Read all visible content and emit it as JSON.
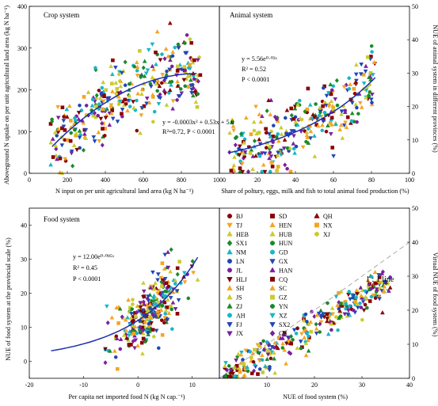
{
  "chart_data": [
    {
      "type": "scatter",
      "title": "Crop system",
      "xlabel": "N input on per unit agricultural land area (kg N ha⁻¹)",
      "ylabel": "Aboveground N uptake on per unit agricultural land area (kg N ha⁻¹)",
      "xlim": [
        0,
        1000
      ],
      "ylim": [
        0,
        400
      ],
      "xticks": [
        "0",
        "200",
        "400",
        "600",
        "800",
        "1000"
      ],
      "yticks": [
        "0",
        "100",
        "200",
        "300",
        "400"
      ],
      "fit": {
        "kind": "quadratic",
        "a": -0.0003,
        "b": 0.53,
        "c": 5.0,
        "x_range": [
          120,
          880
        ]
      },
      "annotations": [
        "y = -0.0003x² + 0.53x + 5.0",
        "R²=0.72,  P < 0.0001"
      ],
      "cloud": {
        "x_range": [
          110,
          900
        ],
        "spread": 45,
        "count": 340
      }
    },
    {
      "type": "scatter",
      "title": "Animal system",
      "xlabel": "Share of poltury, eggs, milk and fish to total animal food production (%)",
      "ylabel": "NUE of animal system in different provinces (%)",
      "xlim": [
        0,
        100
      ],
      "ylim": [
        0,
        50
      ],
      "xticks": [
        "0",
        "20",
        "40",
        "60",
        "80",
        "100"
      ],
      "yticks": [
        "0",
        "10",
        "20",
        "30",
        "40",
        "50"
      ],
      "fit": {
        "kind": "exponential",
        "a": 5.56,
        "b": 0.02,
        "x_range": [
          5,
          82
        ]
      },
      "annotations": [
        "y = 5.56e⁰·⁰²ˣ",
        "R² = 0.52",
        "P < 0.0001"
      ],
      "cloud": {
        "x_range": [
          5,
          82
        ],
        "spread": 5,
        "count": 320
      }
    },
    {
      "type": "scatter",
      "title": "Food system",
      "xlabel": "Per capita net imported food N (kg N cap.⁻¹)",
      "ylabel": "NUE of food system at the provincial scale (%)",
      "xlim": [
        -20,
        15
      ],
      "ylim": [
        -5,
        45
      ],
      "xticks": [
        "-20",
        "-10",
        "0",
        "10"
      ],
      "yticks": [
        "0",
        "10",
        "20",
        "30",
        "40"
      ],
      "fit": {
        "kind": "exponential",
        "a": 12.0,
        "b": 0.085,
        "x_range": [
          -16,
          11
        ]
      },
      "annotations": [
        "y = 12.00e⁰·⁰⁸⁵ˣ",
        "R² = 0.45",
        "P < 0.0001"
      ],
      "cloud": {
        "x_range": [
          -6,
          11
        ],
        "spread": 5,
        "count": 300
      }
    },
    {
      "type": "scatter",
      "title": "",
      "xlabel": "NUE of food system (%)",
      "ylabel": "Virtual NUE of food system (%)",
      "xlim": [
        0,
        40
      ],
      "ylim": [
        0,
        50
      ],
      "xticks": [
        "0",
        "10",
        "20",
        "30",
        "40"
      ],
      "yticks": [
        "0",
        "10",
        "20",
        "30",
        "40",
        "50"
      ],
      "reference_line": {
        "label": "1 : 1 line"
      },
      "cloud": {
        "x_range": [
          1,
          36
        ],
        "spread": 2.2,
        "count": 320
      }
    }
  ],
  "legend": {
    "placement": "food-system panel, upper right",
    "entries": [
      {
        "name": "BJ",
        "color": "#8b0000",
        "marker": "circle"
      },
      {
        "name": "TJ",
        "color": "#f4a522",
        "marker": "triangle-down"
      },
      {
        "name": "HEB",
        "color": "#c9cc2e",
        "marker": "triangle-up"
      },
      {
        "name": "SX1",
        "color": "#1a8a2a",
        "marker": "diamond"
      },
      {
        "name": "NM",
        "color": "#17b5c8",
        "marker": "triangle-up"
      },
      {
        "name": "LN",
        "color": "#2146b5",
        "marker": "circle"
      },
      {
        "name": "JL",
        "color": "#7a1fa0",
        "marker": "circle"
      },
      {
        "name": "HLJ",
        "color": "#7a0000",
        "marker": "triangle-down"
      },
      {
        "name": "SH",
        "color": "#f4a522",
        "marker": "triangle-up"
      },
      {
        "name": "JS",
        "color": "#c9cc2e",
        "marker": "triangle-up"
      },
      {
        "name": "ZJ",
        "color": "#1a8a2a",
        "marker": "triangle-up"
      },
      {
        "name": "AH",
        "color": "#17b5c8",
        "marker": "circle"
      },
      {
        "name": "FJ",
        "color": "#2146b5",
        "marker": "triangle-down"
      },
      {
        "name": "JX",
        "color": "#7a1fa0",
        "marker": "triangle-down"
      },
      {
        "name": "SD",
        "color": "#8b0000",
        "marker": "square"
      },
      {
        "name": "HEN",
        "color": "#f4a522",
        "marker": "triangle-up"
      },
      {
        "name": "HUB",
        "color": "#c9cc2e",
        "marker": "triangle-up"
      },
      {
        "name": "HUN",
        "color": "#1a8a2a",
        "marker": "circle"
      },
      {
        "name": "GD",
        "color": "#17b5c8",
        "marker": "circle"
      },
      {
        "name": "GX",
        "color": "#2146b5",
        "marker": "triangle-down"
      },
      {
        "name": "HAN",
        "color": "#7a1fa0",
        "marker": "triangle-up"
      },
      {
        "name": "CQ",
        "color": "#8b0000",
        "marker": "square"
      },
      {
        "name": "SC",
        "color": "#f4a522",
        "marker": "triangle-up"
      },
      {
        "name": "GZ",
        "color": "#c9cc2e",
        "marker": "square"
      },
      {
        "name": "YN",
        "color": "#1a8a2a",
        "marker": "circle"
      },
      {
        "name": "XZ",
        "color": "#17b5c8",
        "marker": "triangle-down"
      },
      {
        "name": "SX2",
        "color": "#2146b5",
        "marker": "triangle-down"
      },
      {
        "name": "GS",
        "color": "#7a1fa0",
        "marker": "diamond"
      },
      {
        "name": "QH",
        "color": "#8b0000",
        "marker": "triangle-up"
      },
      {
        "name": "NX",
        "color": "#f4a522",
        "marker": "square"
      },
      {
        "name": "XJ",
        "color": "#c9cc2e",
        "marker": "circle"
      }
    ]
  }
}
